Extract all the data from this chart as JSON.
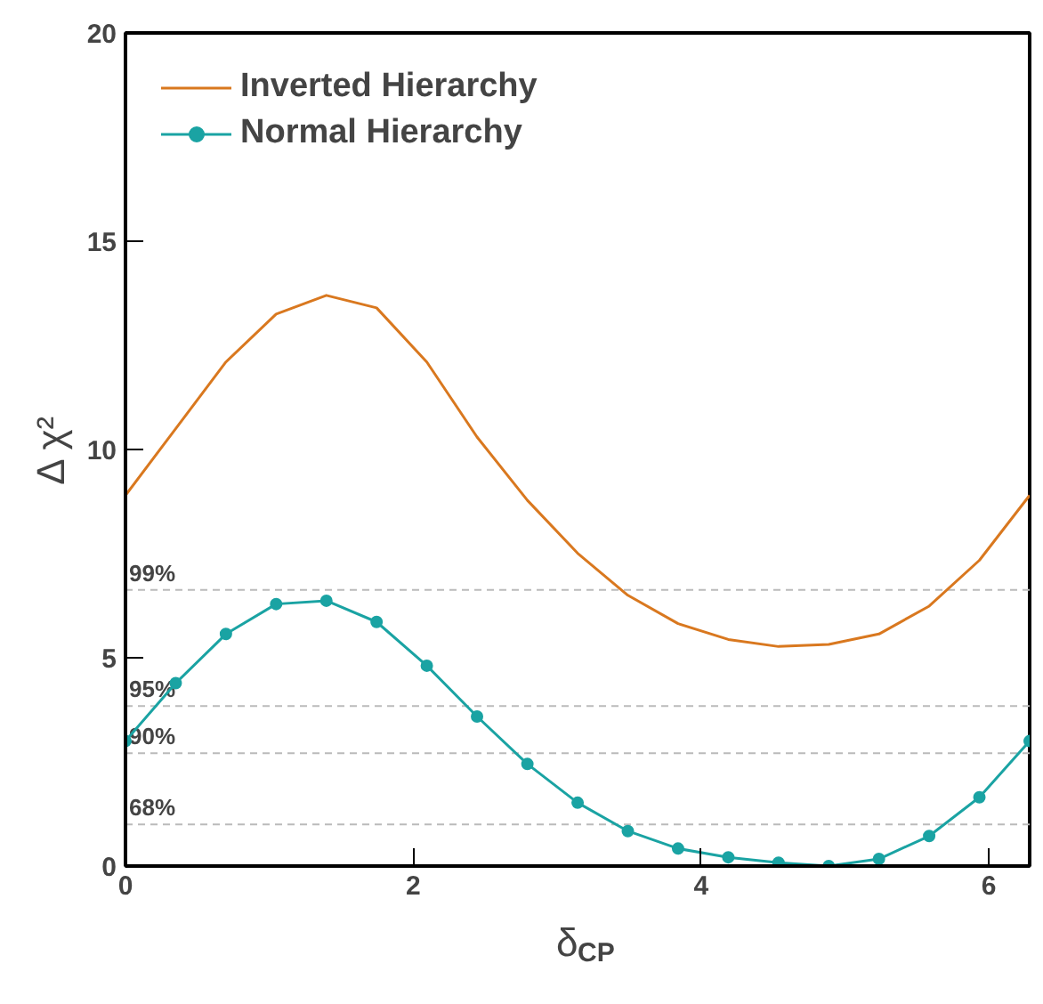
{
  "chart_data": {
    "type": "line",
    "xlabel": "δ$_{CP}$",
    "ylabel": "Δ χ²",
    "xlim": [
      0,
      6.2832
    ],
    "ylim": [
      0,
      20
    ],
    "xticks": [
      0,
      2,
      4,
      6
    ],
    "yticks": [
      0,
      5,
      10,
      15,
      20
    ],
    "grid": false,
    "legend": "top left",
    "x": [
      0,
      0.349,
      0.698,
      1.047,
      1.396,
      1.745,
      2.094,
      2.443,
      2.793,
      3.142,
      3.491,
      3.84,
      4.189,
      4.538,
      4.887,
      5.236,
      5.585,
      5.934,
      6.283
    ],
    "series": [
      {
        "name": "Inverted Hierarchy",
        "color": "#d9781f",
        "marker": "none",
        "values": [
          8.9,
          10.5,
          12.1,
          13.25,
          13.7,
          13.4,
          12.1,
          10.3,
          8.78,
          7.51,
          6.5,
          5.82,
          5.44,
          5.27,
          5.32,
          5.57,
          6.24,
          7.34,
          8.9
        ]
      },
      {
        "name": "Normal Hierarchy",
        "color": "#1aa3a3",
        "marker": "circle",
        "values": [
          3.0,
          4.39,
          5.57,
          6.29,
          6.37,
          5.86,
          4.81,
          3.59,
          2.45,
          1.52,
          0.84,
          0.42,
          0.21,
          0.08,
          0.0,
          0.17,
          0.72,
          1.65,
          3.0
        ]
      }
    ],
    "ref_lines": [
      {
        "axis": "y",
        "value": 6.63,
        "color": "#bbbbbb",
        "line_style": "dashed"
      },
      {
        "axis": "y",
        "value": 3.84,
        "color": "#bbbbbb",
        "line_style": "dashed"
      },
      {
        "axis": "y",
        "value": 2.71,
        "color": "#bbbbbb",
        "line_style": "dashed"
      },
      {
        "axis": "y",
        "value": 1.0,
        "color": "#bbbbbb",
        "line_style": "dashed"
      }
    ],
    "annotations": [
      {
        "text": "99%",
        "y": 6.63
      },
      {
        "text": "95%",
        "y": 3.84
      },
      {
        "text": "90%",
        "y": 2.71
      },
      {
        "text": "68%",
        "y": 1.0
      }
    ]
  }
}
